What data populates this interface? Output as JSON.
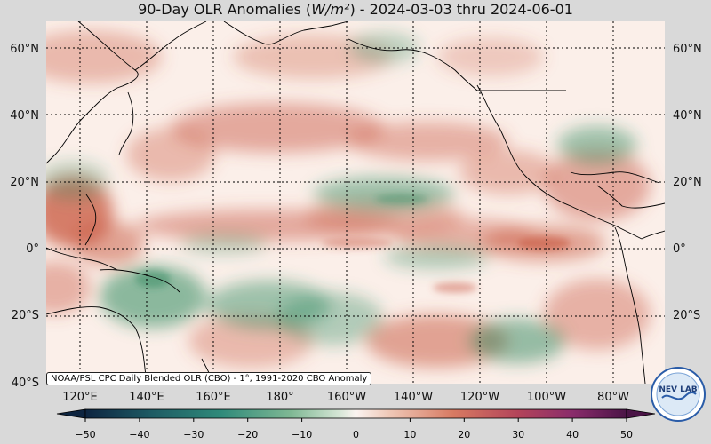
{
  "title": {
    "prefix": "90-Day OLR Anomalies (",
    "unit": "W/m²",
    "suffix": ") - 2024-03-03 thru 2024-06-01"
  },
  "map": {
    "lat_labels": [
      "60°N",
      "40°N",
      "20°N",
      "0°",
      "20°S",
      "40°S"
    ],
    "lon_labels": [
      "120°E",
      "140°E",
      "160°E",
      "180°",
      "160°W",
      "140°W",
      "120°W",
      "100°W",
      "80°W"
    ],
    "colors": {
      "positive": "#c8553d",
      "negative": "#2f8a5f",
      "neutral": "#fbf1ec",
      "coast": "#000000",
      "grid": "#000000"
    }
  },
  "credit": "NOAA/PSL CPC Daily Blended OLR (CBO) - 1°, 1991-2020 CBO Anomaly",
  "colorbar": {
    "ticks": [
      "−50",
      "−40",
      "−30",
      "−20",
      "−10",
      "0",
      "10",
      "20",
      "30",
      "40",
      "50"
    ],
    "min": -50,
    "max": 50,
    "extend": "both"
  },
  "logo": {
    "text": "NEV LAB"
  }
}
